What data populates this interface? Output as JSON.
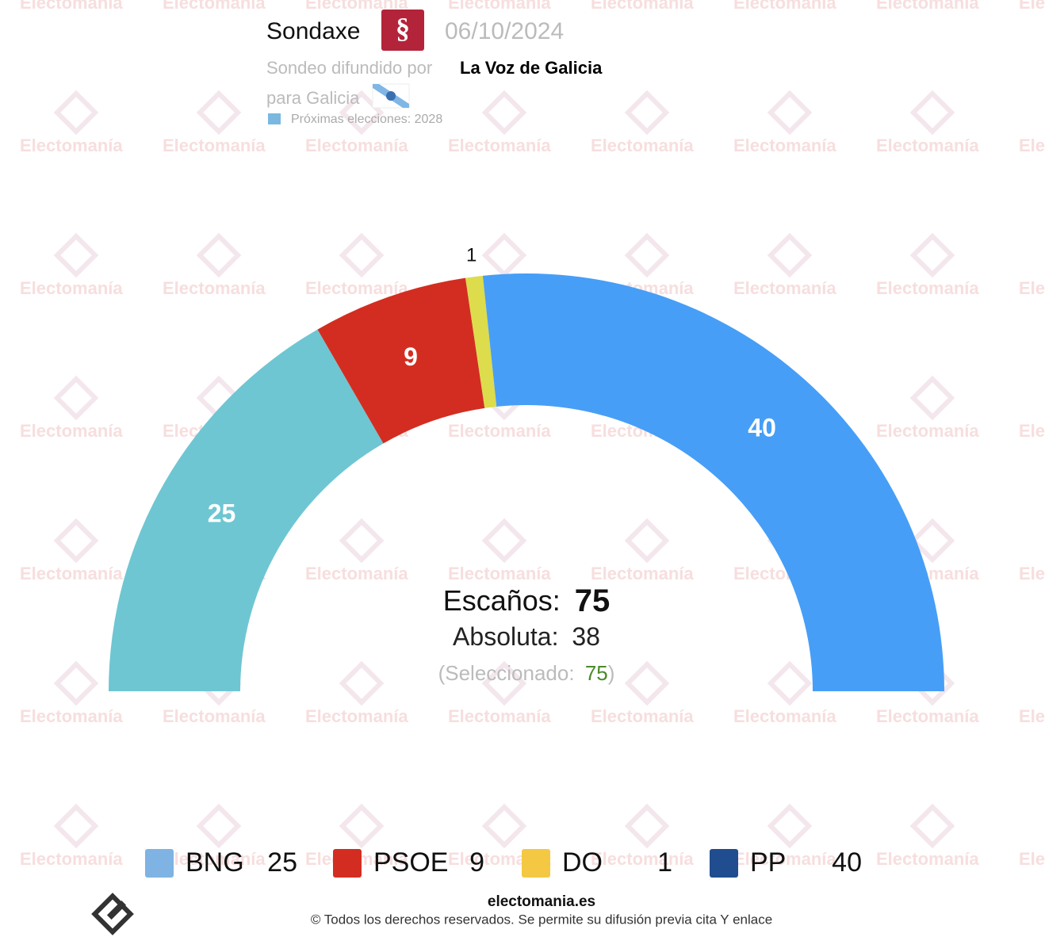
{
  "chart_data": {
    "type": "semicircle",
    "title": "Sondaxe",
    "date": "06/10/2024",
    "subtitle": "Sondeo difundido por",
    "source": "La Voz de Galicia",
    "region": "para Galicia",
    "next_election": "Próximas elecciones: 2028",
    "categories": [
      "BNG",
      "PSOE",
      "DO",
      "PP"
    ],
    "values": [
      25,
      9,
      1,
      40
    ],
    "colors": [
      "#6ec6d2",
      "#d32d21",
      "#dcdc4c",
      "#479ef6"
    ],
    "legend_colors": [
      "#7eb3e3",
      "#d32d21",
      "#f4c842",
      "#1f4d8f"
    ],
    "seats_label": "Escaños:",
    "total_seats": 75,
    "majority_label": "Absoluta:",
    "majority": 38,
    "selected_label": "(Seleccionado:",
    "selected": 75,
    "selected_close": ")",
    "watermark": "Electomanía",
    "footer_site": "electomania.es",
    "footer_rights": "© Todos los derechos reservados. Se permite su difusión previa cita Y enlace"
  }
}
